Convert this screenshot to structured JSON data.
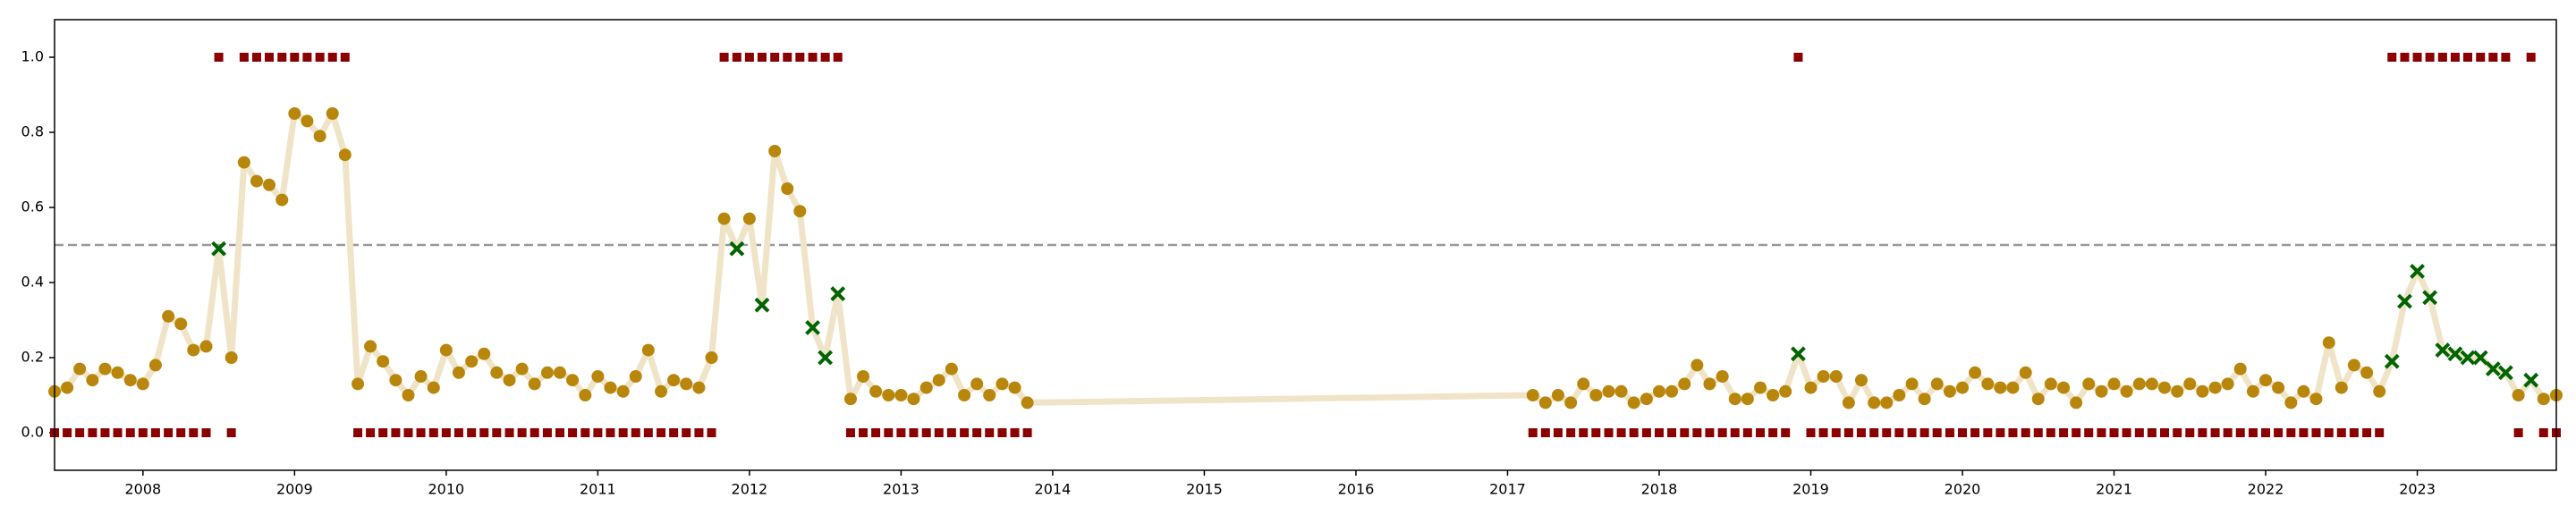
{
  "chart_data": {
    "type": "line",
    "x": [
      2007.417,
      2007.5,
      2007.583,
      2007.667,
      2007.75,
      2007.833,
      2007.917,
      2008,
      2008.083,
      2008.167,
      2008.25,
      2008.333,
      2008.417,
      2008.5,
      2008.583,
      2008.667,
      2008.75,
      2008.833,
      2008.917,
      2009,
      2009.083,
      2009.167,
      2009.25,
      2009.333,
      2009.417,
      2009.5,
      2009.583,
      2009.667,
      2009.75,
      2009.833,
      2009.917,
      2010,
      2010.083,
      2010.167,
      2010.25,
      2010.333,
      2010.417,
      2010.5,
      2010.583,
      2010.667,
      2010.75,
      2010.833,
      2010.917,
      2011,
      2011.083,
      2011.167,
      2011.25,
      2011.333,
      2011.417,
      2011.5,
      2011.583,
      2011.667,
      2011.75,
      2011.833,
      2011.917,
      2012,
      2012.083,
      2012.167,
      2012.25,
      2012.333,
      2012.417,
      2012.5,
      2012.583,
      2012.667,
      2012.75,
      2012.833,
      2012.917,
      2013,
      2013.083,
      2013.167,
      2013.25,
      2013.333,
      2013.417,
      2013.5,
      2013.583,
      2013.667,
      2013.75,
      2013.833,
      2017.167,
      2017.25,
      2017.333,
      2017.417,
      2017.5,
      2017.583,
      2017.667,
      2017.75,
      2017.833,
      2017.917,
      2018,
      2018.083,
      2018.167,
      2018.25,
      2018.333,
      2018.417,
      2018.5,
      2018.583,
      2018.667,
      2018.75,
      2018.833,
      2018.917,
      2019,
      2019.083,
      2019.167,
      2019.25,
      2019.333,
      2019.417,
      2019.5,
      2019.583,
      2019.667,
      2019.75,
      2019.833,
      2019.917,
      2020,
      2020.083,
      2020.167,
      2020.25,
      2020.333,
      2020.417,
      2020.5,
      2020.583,
      2020.667,
      2020.75,
      2020.833,
      2020.917,
      2021,
      2021.083,
      2021.167,
      2021.25,
      2021.333,
      2021.417,
      2021.5,
      2021.583,
      2021.667,
      2021.75,
      2021.833,
      2021.917,
      2022,
      2022.083,
      2022.167,
      2022.25,
      2022.333,
      2022.417,
      2022.5,
      2022.583,
      2022.667,
      2022.75,
      2022.833,
      2022.917,
      2023,
      2023.083,
      2023.167,
      2023.25,
      2023.333,
      2023.417,
      2023.5,
      2023.583,
      2023.667,
      2023.75,
      2023.833,
      2023.917
    ],
    "series": [
      {
        "marker": "circle",
        "color": "#b8860b",
        "line_color": "#f0e4c8",
        "values": [
          0.11,
          0.12,
          0.17,
          0.14,
          0.17,
          0.16,
          0.14,
          0.13,
          0.18,
          0.31,
          0.29,
          0.22,
          0.23,
          0.49,
          0.2,
          0.72,
          0.67,
          0.66,
          0.62,
          0.85,
          0.83,
          0.79,
          0.85,
          0.74,
          0.13,
          0.23,
          0.19,
          0.14,
          0.1,
          0.15,
          0.12,
          0.22,
          0.16,
          0.19,
          0.21,
          0.16,
          0.14,
          0.17,
          0.13,
          0.16,
          0.16,
          0.14,
          0.1,
          0.15,
          0.12,
          0.11,
          0.15,
          0.22,
          0.11,
          0.14,
          0.13,
          0.12,
          0.2,
          0.57,
          0.49,
          0.57,
          0.34,
          0.75,
          0.65,
          0.59,
          0.28,
          0.2,
          0.37,
          0.09,
          0.15,
          0.11,
          0.1,
          0.1,
          0.09,
          0.12,
          0.14,
          0.17,
          0.1,
          0.13,
          0.1,
          0.13,
          0.12,
          0.08,
          0.1,
          0.08,
          0.1,
          0.08,
          0.13,
          0.1,
          0.11,
          0.11,
          0.08,
          0.09,
          0.11,
          0.11,
          0.13,
          0.18,
          0.13,
          0.15,
          0.09,
          0.09,
          0.12,
          0.1,
          0.11,
          0.21,
          0.12,
          0.15,
          0.15,
          0.08,
          0.14,
          0.08,
          0.08,
          0.1,
          0.13,
          0.09,
          0.13,
          0.11,
          0.12,
          0.16,
          0.13,
          0.12,
          0.12,
          0.16,
          0.09,
          0.13,
          0.12,
          0.08,
          0.13,
          0.11,
          0.13,
          0.11,
          0.13,
          0.13,
          0.12,
          0.11,
          0.13,
          0.11,
          0.12,
          0.13,
          0.17,
          0.11,
          0.14,
          0.12,
          0.08,
          0.11,
          0.09,
          0.24,
          0.12,
          0.18,
          0.16,
          0.11,
          0.19,
          0.35,
          0.43,
          0.36,
          0.22,
          0.21,
          0.2,
          0.2,
          0.17,
          0.16,
          0.1,
          0.14,
          0.09,
          0.1
        ]
      },
      {
        "marker": "square",
        "color": "#8b0000",
        "values": [
          0,
          0,
          0,
          0,
          0,
          0,
          0,
          0,
          0,
          0,
          0,
          0,
          0,
          1,
          0,
          1,
          1,
          1,
          1,
          1,
          1,
          1,
          1,
          1,
          0,
          0,
          0,
          0,
          0,
          0,
          0,
          0,
          0,
          0,
          0,
          0,
          0,
          0,
          0,
          0,
          0,
          0,
          0,
          0,
          0,
          0,
          0,
          0,
          0,
          0,
          0,
          0,
          0,
          1,
          1,
          1,
          1,
          1,
          1,
          1,
          1,
          1,
          1,
          0,
          0,
          0,
          0,
          0,
          0,
          0,
          0,
          0,
          0,
          0,
          0,
          0,
          0,
          0,
          0,
          0,
          0,
          0,
          0,
          0,
          0,
          0,
          0,
          0,
          0,
          0,
          0,
          0,
          0,
          0,
          0,
          0,
          0,
          0,
          0,
          1,
          0,
          0,
          0,
          0,
          0,
          0,
          0,
          0,
          0,
          0,
          0,
          0,
          0,
          0,
          0,
          0,
          0,
          0,
          0,
          0,
          0,
          0,
          0,
          0,
          0,
          0,
          0,
          0,
          0,
          0,
          0,
          0,
          0,
          0,
          0,
          0,
          0,
          0,
          0,
          0,
          0,
          0,
          0,
          0,
          0,
          0,
          1,
          1,
          1,
          1,
          1,
          1,
          1,
          1,
          1,
          1,
          0,
          1,
          0,
          0
        ]
      },
      {
        "marker": "x",
        "color": "#006400",
        "values": [
          null,
          null,
          null,
          null,
          null,
          null,
          null,
          null,
          null,
          null,
          null,
          null,
          null,
          0.49,
          null,
          null,
          null,
          null,
          null,
          null,
          null,
          null,
          null,
          null,
          null,
          null,
          null,
          null,
          null,
          null,
          null,
          null,
          null,
          null,
          null,
          null,
          null,
          null,
          null,
          null,
          null,
          null,
          null,
          null,
          null,
          null,
          null,
          null,
          null,
          null,
          null,
          null,
          null,
          null,
          0.49,
          null,
          0.34,
          null,
          null,
          null,
          0.28,
          0.2,
          0.37,
          null,
          null,
          null,
          null,
          null,
          null,
          null,
          null,
          null,
          null,
          null,
          null,
          null,
          null,
          null,
          null,
          null,
          null,
          null,
          null,
          null,
          null,
          null,
          null,
          null,
          null,
          null,
          null,
          null,
          null,
          null,
          null,
          null,
          null,
          null,
          null,
          0.21,
          null,
          null,
          null,
          null,
          null,
          null,
          null,
          null,
          null,
          null,
          null,
          null,
          null,
          null,
          null,
          null,
          null,
          null,
          null,
          null,
          null,
          null,
          null,
          null,
          null,
          null,
          null,
          null,
          null,
          null,
          null,
          null,
          null,
          null,
          null,
          null,
          null,
          null,
          null,
          null,
          null,
          null,
          null,
          null,
          null,
          null,
          0.19,
          0.35,
          0.43,
          0.36,
          0.22,
          0.21,
          0.2,
          0.2,
          0.17,
          0.16,
          null,
          0.14,
          null,
          null
        ]
      }
    ],
    "threshold": 0.5,
    "xlim": [
      2007.417,
      2023.917
    ],
    "ylim": [
      -0.1,
      1.1
    ],
    "xticks": [
      2008,
      2009,
      2010,
      2011,
      2012,
      2013,
      2014,
      2015,
      2016,
      2017,
      2018,
      2019,
      2020,
      2021,
      2022,
      2023
    ],
    "yticks": [
      {
        "value": 0,
        "label": "0.0"
      },
      0.2,
      0.4,
      0.6,
      0.8,
      {
        "value": 1,
        "label": "1.0"
      }
    ]
  }
}
